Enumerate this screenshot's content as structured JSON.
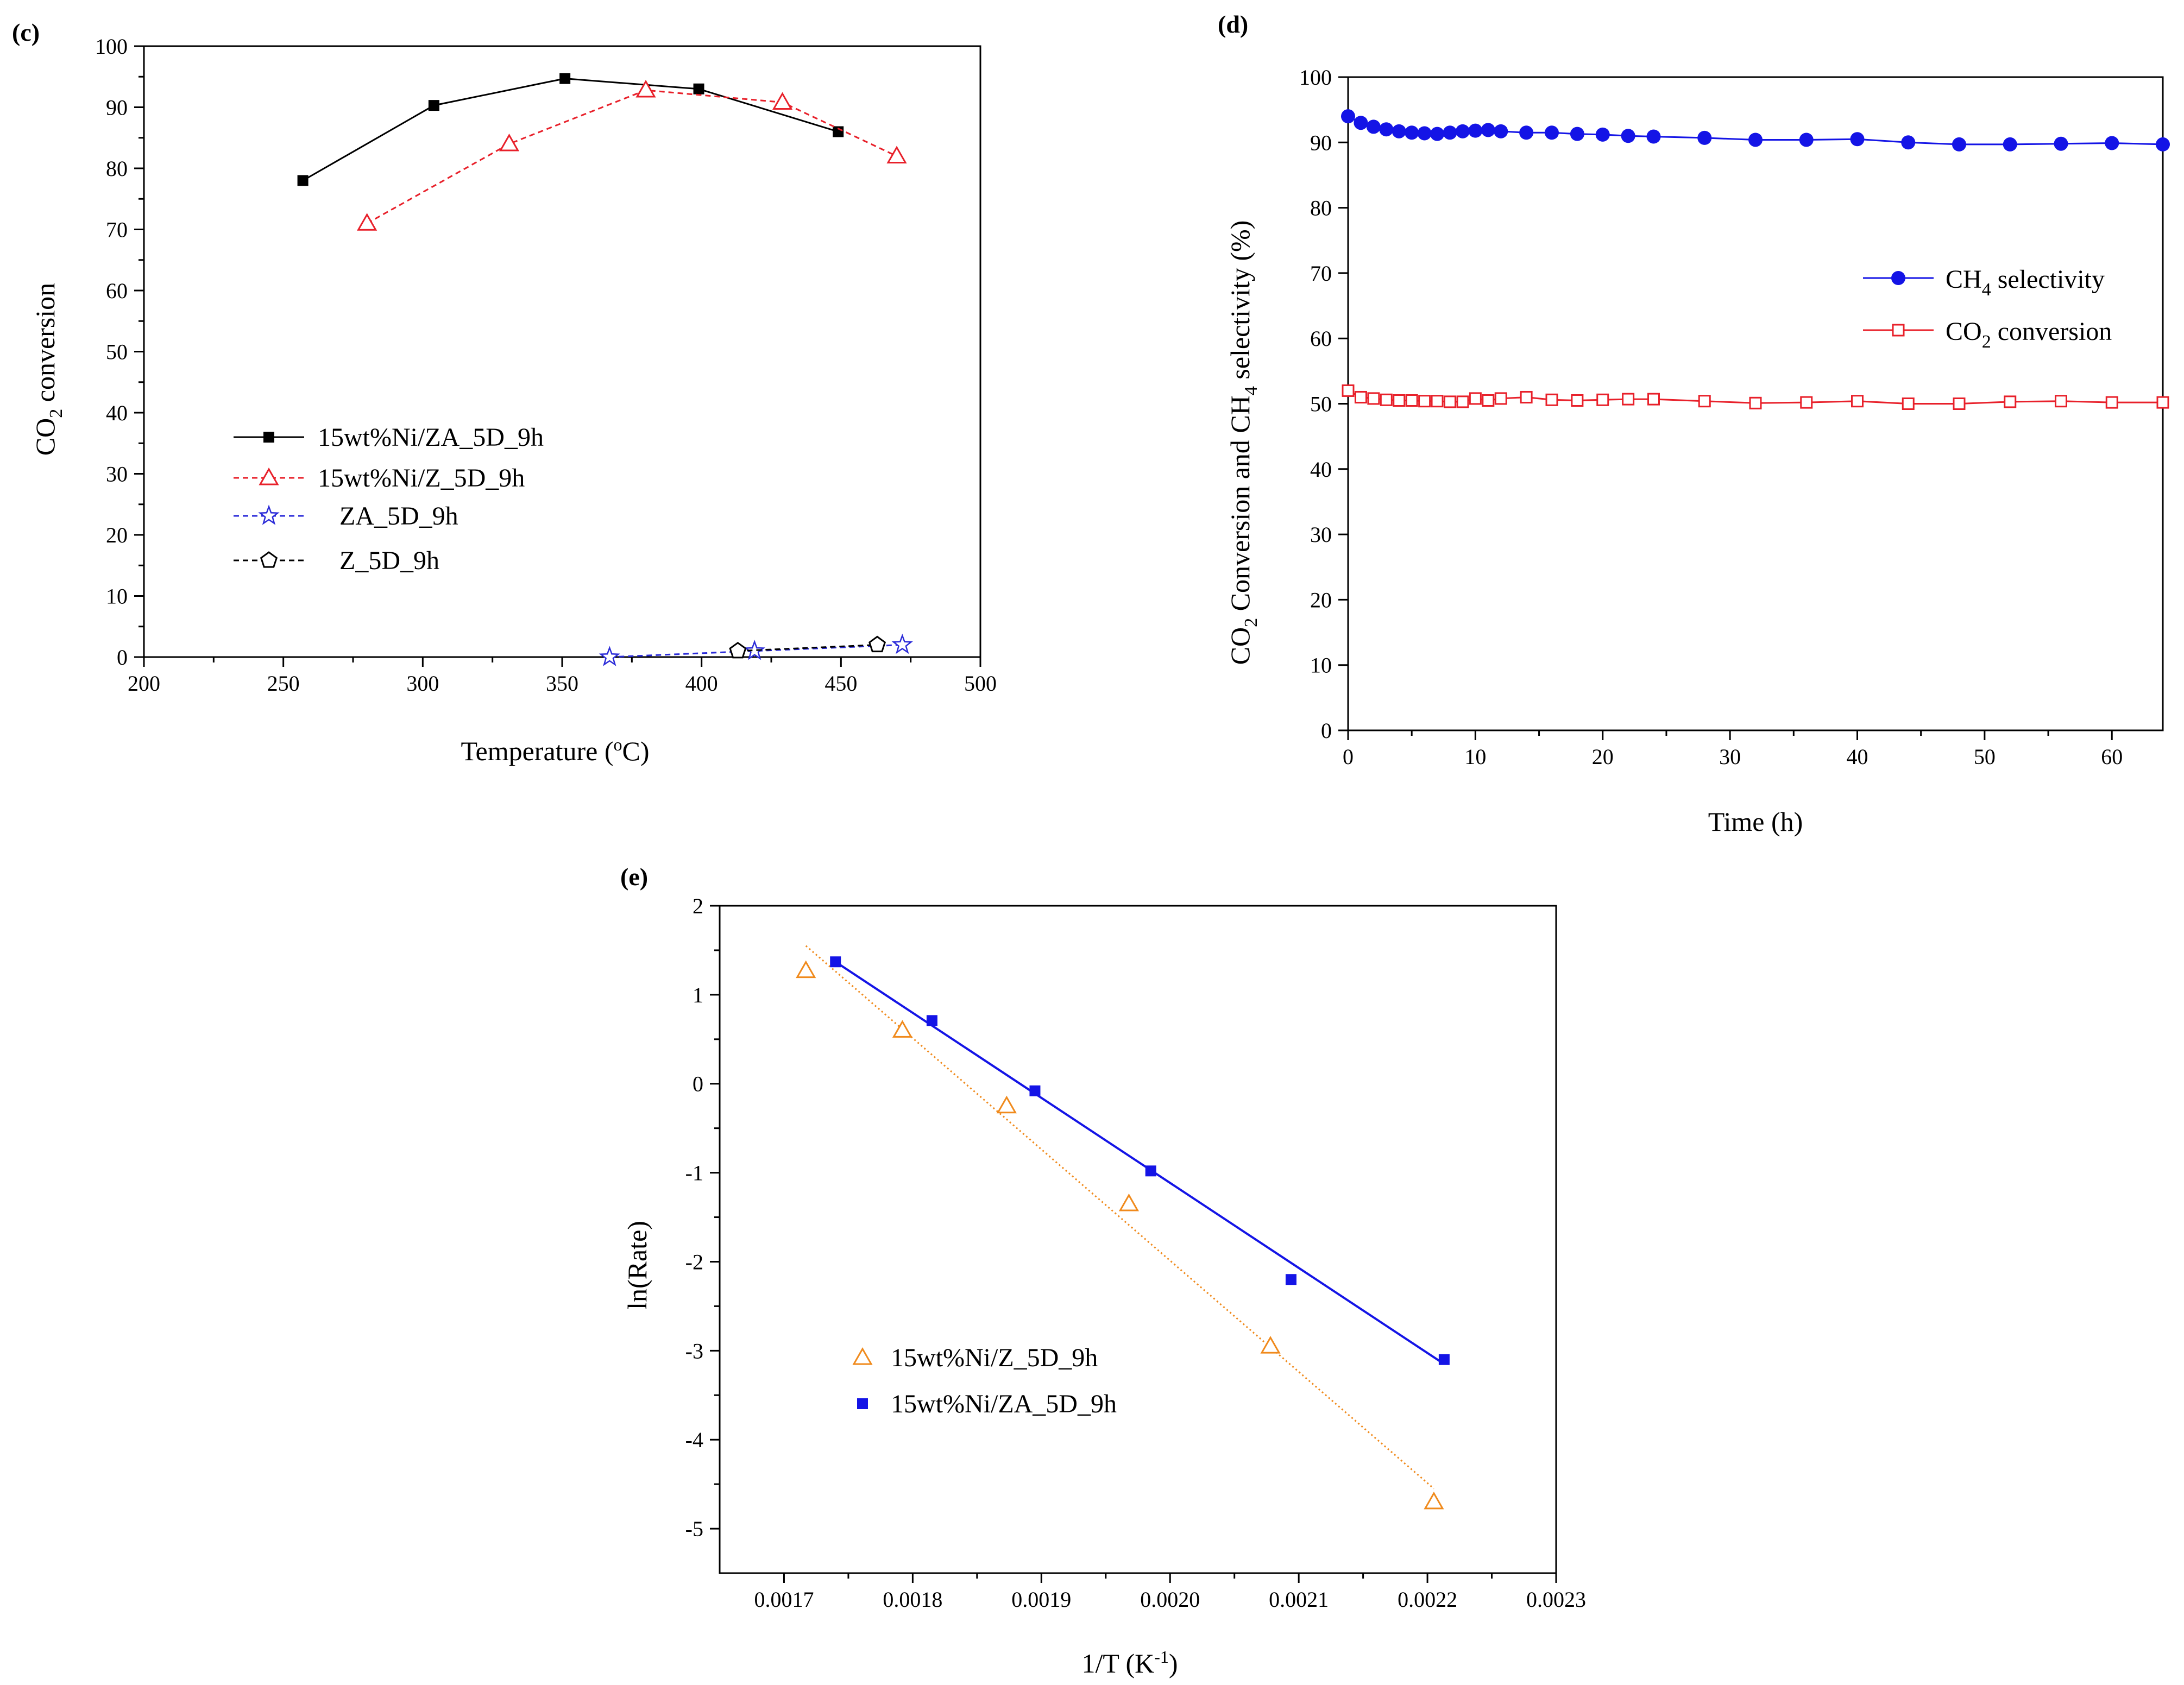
{
  "chart_data": [
    {
      "panel": "(c)",
      "type": "line",
      "title": "",
      "xlabel": "Temperature (",
      "xlabel_unit": "o",
      "xlabel_end": "C)",
      "ylabel": "CO",
      "ylabel_sub": "2",
      "ylabel_end": " conversion",
      "xlim": [
        200,
        500
      ],
      "ylim": [
        0,
        100
      ],
      "xticks": [
        200,
        250,
        300,
        350,
        400,
        450,
        500
      ],
      "yticks": [
        0,
        10,
        20,
        30,
        40,
        50,
        60,
        70,
        80,
        90,
        100
      ],
      "series": [
        {
          "name": "15wt%Ni/ZA_5D_9h",
          "color": "#000000",
          "marker": "square-filled",
          "dash": false,
          "x": [
            257,
            304,
            351,
            399,
            449
          ],
          "y": [
            78,
            90.3,
            94.7,
            93,
            86
          ]
        },
        {
          "name": "15wt%Ni/Z_5D_9h",
          "color": "#e8202a",
          "marker": "triangle-open",
          "dash": true,
          "x": [
            280,
            331,
            380,
            429,
            470
          ],
          "y": [
            71,
            84,
            92.8,
            90.8,
            82
          ]
        },
        {
          "name": "ZA_5D_9h",
          "color": "#2a2ad8",
          "marker": "star-open",
          "dash": true,
          "x": [
            367,
            419,
            472
          ],
          "y": [
            0,
            1,
            2
          ]
        },
        {
          "name": "Z_5D_9h",
          "color": "#000000",
          "marker": "pentagon-open",
          "dash": true,
          "x": [
            413,
            463
          ],
          "y": [
            1,
            2
          ]
        }
      ]
    },
    {
      "panel": "(d)",
      "type": "line",
      "title": "",
      "xlabel": "Time (h)",
      "ylabel_parts": [
        "CO",
        "2",
        " Conversion and CH",
        "4",
        " selectivity (%)"
      ],
      "xlim": [
        0,
        64
      ],
      "ylim": [
        0,
        100
      ],
      "xticks": [
        0,
        10,
        20,
        30,
        40,
        50,
        60
      ],
      "yticks": [
        0,
        10,
        20,
        30,
        40,
        50,
        60,
        70,
        80,
        90,
        100
      ],
      "series": [
        {
          "name": "CH",
          "name_sub": "4",
          "name_end": " selectivity",
          "color": "#1414e6",
          "marker": "circle-filled",
          "x": [
            0,
            1,
            2,
            3,
            4,
            5,
            6,
            7,
            8,
            9,
            10,
            11,
            12,
            14,
            16,
            18,
            20,
            22,
            24,
            28,
            32,
            36,
            40,
            44,
            48,
            52,
            56,
            60,
            64
          ],
          "y": [
            94,
            93,
            92.4,
            92,
            91.7,
            91.5,
            91.4,
            91.3,
            91.5,
            91.7,
            91.8,
            91.9,
            91.7,
            91.5,
            91.5,
            91.3,
            91.2,
            91.0,
            90.9,
            90.7,
            90.4,
            90.4,
            90.5,
            90.0,
            89.7,
            89.7,
            89.8,
            89.9,
            89.7
          ]
        },
        {
          "name": "CO",
          "name_sub": "2",
          "name_end": " conversion",
          "color": "#e8202a",
          "marker": "square-open",
          "x": [
            0,
            1,
            2,
            3,
            4,
            5,
            6,
            7,
            8,
            9,
            10,
            11,
            12,
            14,
            16,
            18,
            20,
            22,
            24,
            28,
            32,
            36,
            40,
            44,
            48,
            52,
            56,
            60,
            64
          ],
          "y": [
            52,
            51,
            50.8,
            50.6,
            50.5,
            50.5,
            50.4,
            50.4,
            50.3,
            50.3,
            50.8,
            50.5,
            50.8,
            51,
            50.6,
            50.5,
            50.6,
            50.7,
            50.7,
            50.4,
            50.1,
            50.2,
            50.4,
            50.0,
            50.0,
            50.3,
            50.4,
            50.2,
            50.2
          ]
        }
      ]
    },
    {
      "panel": "(e)",
      "type": "scatter",
      "title": "",
      "xlabel": "1/T (K",
      "xlabel_sup": "-1",
      "xlabel_end": ")",
      "ylabel": "ln(Rate)",
      "xlim": [
        0.00165,
        0.0023
      ],
      "ylim": [
        -5.5,
        2
      ],
      "xticks": [
        "0.0017",
        "0.0018",
        "0.0019",
        "0.0020",
        "0.0021",
        "0.0022",
        "0.0023"
      ],
      "yticks": [
        2,
        1,
        0,
        -1,
        -2,
        -3,
        -4,
        -5
      ],
      "series": [
        {
          "name": "15wt%Ni/Z_5D_9h",
          "color": "#f08a1c",
          "marker": "triangle-open",
          "fit": "dotted",
          "x": [
            0.001717,
            0.001792,
            0.001873,
            0.001968,
            0.002078,
            0.002205
          ],
          "y": [
            1.27,
            0.6,
            -0.25,
            -1.35,
            -2.95,
            -4.7
          ],
          "fit_line": {
            "x": [
              0.001717,
              0.002205
            ],
            "y": [
              1.55,
              -4.55
            ]
          }
        },
        {
          "name": "15wt%Ni/ZA_5D_9h",
          "color": "#1414e6",
          "marker": "square-filled",
          "fit": "solid",
          "x": [
            0.00174,
            0.001815,
            0.001895,
            0.001985,
            0.002094,
            0.002213
          ],
          "y": [
            1.37,
            0.71,
            -0.08,
            -0.98,
            -2.2,
            -3.1
          ],
          "fit_line": {
            "x": [
              0.00174,
              0.002213
            ],
            "y": [
              1.37,
              -3.15
            ]
          }
        }
      ]
    }
  ]
}
